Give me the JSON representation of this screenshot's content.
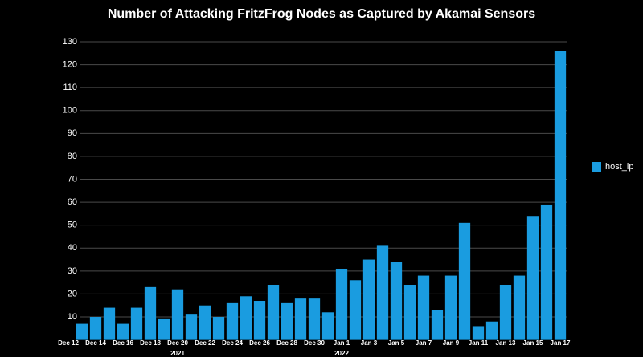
{
  "chart_data": {
    "type": "bar",
    "title": "Number of Attacking FritzFrog Nodes as Captured by Akamai Sensors",
    "categories": [
      "Dec 12",
      null,
      "Dec 14",
      null,
      "Dec 16",
      null,
      "Dec 18",
      null,
      "Dec 20",
      null,
      "Dec 22",
      null,
      "Dec 24",
      null,
      "Dec 26",
      null,
      "Dec 28",
      null,
      "Dec 30",
      null,
      "Jan 1",
      null,
      "Jan 3",
      null,
      "Jan 5",
      null,
      "Jan 7",
      null,
      "Jan 9",
      null,
      "Jan 11",
      null,
      "Jan 13",
      null,
      "Jan 15",
      null,
      "Jan 17"
    ],
    "series": [
      {
        "name": "host_ip",
        "color": "#1a9ce0",
        "values": [
          0,
          7,
          10,
          14,
          7,
          14,
          23,
          9,
          22,
          11,
          15,
          10,
          16,
          19,
          17,
          24,
          16,
          18,
          18,
          12,
          31,
          26,
          35,
          41,
          34,
          24,
          28,
          13,
          28,
          51,
          6,
          8,
          24,
          28,
          54,
          59,
          126
        ]
      }
    ],
    "annotations": [
      "2021",
      "2022"
    ],
    "ylim": [
      0,
      130
    ],
    "yticks": [
      10,
      20,
      30,
      40,
      50,
      60,
      70,
      80,
      90,
      100,
      110,
      120,
      130
    ],
    "grid": true,
    "legend": "right"
  }
}
